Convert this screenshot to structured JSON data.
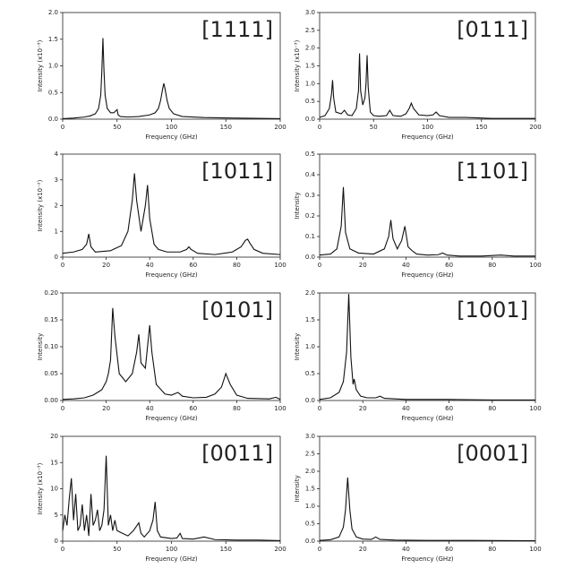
{
  "chart_data": [
    {
      "type": "line",
      "annotation": "[1111]",
      "x_label": "Frequency (GHz)",
      "y_label": "Intensity (x10⁻³)",
      "color": "#111111",
      "x": [
        0,
        10,
        20,
        25,
        30,
        33,
        35,
        36,
        37,
        38,
        39,
        41,
        44,
        47,
        49,
        50,
        51,
        53,
        60,
        70,
        80,
        85,
        88,
        90,
        92,
        93,
        94,
        96,
        98,
        102,
        110,
        130,
        160,
        200
      ],
      "values": [
        0.01,
        0.02,
        0.04,
        0.06,
        0.1,
        0.2,
        0.45,
        0.9,
        1.52,
        0.9,
        0.45,
        0.2,
        0.12,
        0.12,
        0.16,
        0.18,
        0.08,
        0.05,
        0.04,
        0.05,
        0.08,
        0.12,
        0.2,
        0.35,
        0.58,
        0.67,
        0.58,
        0.35,
        0.2,
        0.1,
        0.05,
        0.03,
        0.02,
        0.01
      ],
      "xlim": [
        0,
        200
      ],
      "ylim": [
        0,
        2
      ],
      "xticks": [
        0,
        50,
        100,
        150,
        200
      ],
      "yticks": [
        {
          "value": 0,
          "label": "0.0"
        },
        0.5,
        {
          "value": 1,
          "label": "1.0"
        },
        1.5,
        {
          "value": 2,
          "label": "2.0"
        }
      ]
    },
    {
      "type": "line",
      "annotation": "[0111]",
      "x_label": "Frequency (GHz)",
      "y_label": "Intensity (x10⁻³)",
      "color": "#111111",
      "x": [
        0,
        5,
        9,
        11,
        12,
        13,
        15,
        20,
        23,
        26,
        30,
        34,
        36,
        37,
        38,
        40,
        42,
        43,
        44,
        45,
        47,
        50,
        55,
        62,
        65,
        68,
        75,
        80,
        83,
        85,
        87,
        92,
        100,
        105,
        108,
        111,
        120,
        135,
        160,
        200
      ],
      "values": [
        0.05,
        0.1,
        0.3,
        0.7,
        1.1,
        0.6,
        0.2,
        0.15,
        0.25,
        0.12,
        0.1,
        0.3,
        0.8,
        1.85,
        0.8,
        0.4,
        0.6,
        1.0,
        1.8,
        0.9,
        0.2,
        0.1,
        0.08,
        0.1,
        0.25,
        0.1,
        0.08,
        0.15,
        0.3,
        0.45,
        0.3,
        0.12,
        0.1,
        0.12,
        0.2,
        0.1,
        0.05,
        0.05,
        0.02,
        0.02
      ],
      "xlim": [
        0,
        200
      ],
      "ylim": [
        0,
        3
      ],
      "xticks": [
        0,
        50,
        100,
        150,
        200
      ],
      "yticks": [
        {
          "value": 0,
          "label": "0.0"
        },
        0.5,
        {
          "value": 1,
          "label": "1.0"
        },
        1.5,
        {
          "value": 2,
          "label": "2.0"
        },
        2.5,
        {
          "value": 3,
          "label": "3.0"
        }
      ]
    },
    {
      "type": "line",
      "annotation": "[1011]",
      "x_label": "Frequency (GHz)",
      "y_label": "Intensity (x10⁻²)",
      "color": "#111111",
      "x": [
        0,
        5,
        9,
        11,
        12,
        13,
        15,
        22,
        27,
        30,
        32,
        33,
        34,
        36,
        38,
        39,
        40,
        42,
        43,
        44,
        48,
        54,
        57,
        58,
        59,
        62,
        70,
        78,
        82,
        84,
        85,
        86,
        88,
        92,
        100
      ],
      "values": [
        0.15,
        0.2,
        0.3,
        0.5,
        0.9,
        0.4,
        0.2,
        0.25,
        0.45,
        1.0,
        2.2,
        3.25,
        2.2,
        1.0,
        2.0,
        2.8,
        1.5,
        0.5,
        0.4,
        0.3,
        0.2,
        0.2,
        0.3,
        0.4,
        0.3,
        0.15,
        0.1,
        0.2,
        0.4,
        0.65,
        0.7,
        0.55,
        0.3,
        0.15,
        0.1
      ],
      "xlim": [
        0,
        100
      ],
      "ylim": [
        0,
        4
      ],
      "xticks": [
        0,
        20,
        40,
        60,
        80,
        100
      ],
      "yticks": [
        0,
        1,
        2,
        3,
        4
      ]
    },
    {
      "type": "line",
      "annotation": "[1101]",
      "x_label": "Frequency (GHz)",
      "y_label": "Intensity",
      "color": "#111111",
      "x": [
        0,
        5,
        8,
        10,
        11,
        12,
        14,
        18,
        25,
        30,
        32,
        33,
        34,
        36,
        38,
        39.5,
        41,
        43,
        45,
        50,
        55,
        57,
        59,
        65,
        75,
        84,
        90,
        100
      ],
      "values": [
        0.01,
        0.015,
        0.04,
        0.15,
        0.34,
        0.12,
        0.04,
        0.02,
        0.015,
        0.04,
        0.1,
        0.18,
        0.09,
        0.04,
        0.08,
        0.15,
        0.05,
        0.03,
        0.015,
        0.01,
        0.012,
        0.02,
        0.01,
        0.005,
        0.005,
        0.01,
        0.005,
        0.005
      ],
      "xlim": [
        0,
        100
      ],
      "ylim": [
        0,
        0.5
      ],
      "xticks": [
        0,
        20,
        40,
        60,
        80,
        100
      ],
      "yticks": [
        {
          "value": 0,
          "label": "0.0"
        },
        0.1,
        0.2,
        0.3,
        0.4,
        0.5
      ]
    },
    {
      "type": "line",
      "annotation": "[0101]",
      "x_label": "Frequency (GHz)",
      "y_label": "Intensity",
      "color": "#111111",
      "x": [
        0,
        5,
        10,
        14,
        16,
        18,
        20,
        21,
        22,
        23,
        24,
        26,
        29,
        32,
        34,
        35,
        36,
        38,
        40,
        41,
        43,
        47,
        50,
        53,
        55,
        60,
        66,
        70,
        73,
        75,
        77,
        80,
        85,
        95,
        98,
        100
      ],
      "values": [
        0.002,
        0.003,
        0.005,
        0.01,
        0.015,
        0.02,
        0.035,
        0.05,
        0.075,
        0.172,
        0.12,
        0.05,
        0.035,
        0.05,
        0.09,
        0.123,
        0.07,
        0.06,
        0.14,
        0.09,
        0.03,
        0.012,
        0.01,
        0.015,
        0.008,
        0.005,
        0.006,
        0.012,
        0.025,
        0.05,
        0.03,
        0.01,
        0.004,
        0.003,
        0.006,
        0.002
      ],
      "xlim": [
        0,
        100
      ],
      "ylim": [
        0,
        0.2
      ],
      "xticks": [
        0,
        20,
        40,
        60,
        80,
        100
      ],
      "yticks": [
        {
          "value": 0,
          "label": "0.00"
        },
        0.05,
        {
          "value": 0.1,
          "label": "0.10"
        },
        0.15,
        {
          "value": 0.2,
          "label": "0.20"
        }
      ]
    },
    {
      "type": "line",
      "annotation": "[1001]",
      "x_label": "Frequency (GHz)",
      "y_label": "Intensity",
      "color": "#111111",
      "x": [
        0,
        5,
        9,
        11,
        12.5,
        13.5,
        14.5,
        15.5,
        16,
        17,
        19,
        22,
        26,
        28,
        30,
        40,
        60,
        80,
        100
      ],
      "values": [
        0.02,
        0.05,
        0.15,
        0.35,
        0.9,
        1.98,
        0.8,
        0.3,
        0.4,
        0.2,
        0.08,
        0.05,
        0.05,
        0.08,
        0.04,
        0.02,
        0.02,
        0.01,
        0.01
      ],
      "xlim": [
        0,
        100
      ],
      "ylim": [
        0,
        2
      ],
      "xticks": [
        0,
        20,
        40,
        60,
        80,
        100
      ],
      "yticks": [
        {
          "value": 0,
          "label": "0.0"
        },
        0.5,
        {
          "value": 1,
          "label": "1.0"
        },
        1.5,
        {
          "value": 2,
          "label": "2.0"
        }
      ]
    },
    {
      "type": "line",
      "annotation": "[0011]",
      "x_label": "Frequency (GHz)",
      "y_label": "Intensity (x10⁻³)",
      "color": "#111111",
      "x": [
        0,
        2,
        4,
        6,
        8,
        10,
        12,
        14,
        16,
        18,
        20,
        22,
        24,
        26,
        28,
        30,
        32,
        34,
        36,
        38,
        40,
        42,
        44,
        46,
        48,
        50,
        55,
        60,
        65,
        70,
        72,
        75,
        80,
        83,
        85,
        87,
        90,
        100,
        105,
        108,
        110,
        120,
        130,
        140,
        160,
        180,
        200
      ],
      "values": [
        2,
        5,
        3,
        8,
        12,
        4,
        9,
        2,
        3,
        7,
        2,
        5,
        1,
        9,
        3,
        4,
        6,
        2,
        3,
        6,
        16.3,
        3,
        5,
        2,
        4,
        2,
        1.5,
        1,
        2,
        3.5,
        1.5,
        0.8,
        2,
        4,
        7.5,
        2,
        0.8,
        0.5,
        0.6,
        1.5,
        0.5,
        0.4,
        0.8,
        0.3,
        0.2,
        0.2,
        0.1
      ],
      "xlim": [
        0,
        200
      ],
      "ylim": [
        0,
        20
      ],
      "xticks": [
        0,
        50,
        100,
        150,
        200
      ],
      "yticks": [
        0,
        5,
        10,
        15,
        20
      ]
    },
    {
      "type": "line",
      "annotation": "[0001]",
      "x_label": "Frequency (GHz)",
      "y_label": "Intensity",
      "color": "#111111",
      "x": [
        0,
        5,
        9,
        11,
        12,
        13,
        14,
        15,
        17,
        20,
        24,
        26,
        28,
        35,
        50,
        70,
        100
      ],
      "values": [
        0.02,
        0.04,
        0.12,
        0.4,
        0.9,
        1.82,
        0.9,
        0.35,
        0.12,
        0.06,
        0.05,
        0.12,
        0.05,
        0.03,
        0.02,
        0.02,
        0.01
      ],
      "xlim": [
        0,
        100
      ],
      "ylim": [
        0,
        3
      ],
      "xticks": [
        0,
        20,
        40,
        60,
        80,
        100
      ],
      "yticks": [
        {
          "value": 0,
          "label": "0.0"
        },
        0.5,
        {
          "value": 1,
          "label": "1.0"
        },
        1.5,
        {
          "value": 2,
          "label": "2.0"
        },
        2.5,
        {
          "value": 3,
          "label": "3.0"
        }
      ]
    }
  ]
}
